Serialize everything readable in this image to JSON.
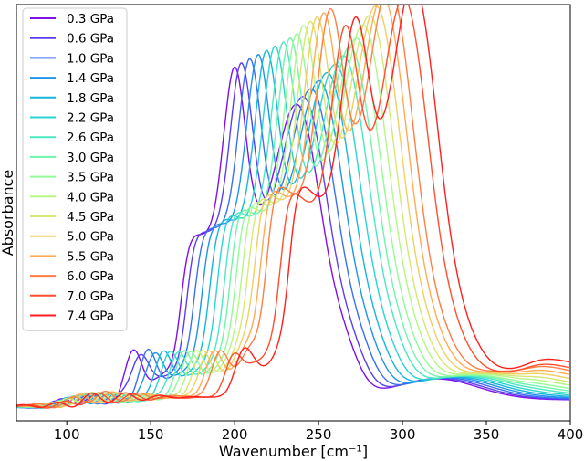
{
  "chart_data": {
    "type": "line",
    "title": "",
    "xlabel": "Wavenumber [cm⁻¹]",
    "ylabel": "Absorbance",
    "xlim": [
      70,
      400
    ],
    "ylim": [
      0,
      1
    ],
    "x_ticks": [
      "100",
      "150",
      "200",
      "250",
      "300",
      "350",
      "400"
    ],
    "x_tick_values": [
      100,
      150,
      200,
      250,
      300,
      350,
      400
    ],
    "y_ticks_shown": false,
    "grid": false,
    "legend_position": "top-left",
    "note": "",
    "series": [
      {
        "name": "0.3 GPa",
        "color": "#7f10e6",
        "peak_x": 200,
        "peak_y": 0.85
      },
      {
        "name": "0.6 GPa",
        "color": "#5a3ff0",
        "peak_x": 204,
        "peak_y": 0.86
      },
      {
        "name": "1.0 GPa",
        "color": "#3a6ff5",
        "peak_x": 209,
        "peak_y": 0.87
      },
      {
        "name": "1.4 GPa",
        "color": "#1f94e8",
        "peak_x": 214,
        "peak_y": 0.88
      },
      {
        "name": "1.8 GPa",
        "color": "#16b5dc",
        "peak_x": 219,
        "peak_y": 0.89
      },
      {
        "name": "2.2 GPa",
        "color": "#2ad4d0",
        "peak_x": 224,
        "peak_y": 0.9
      },
      {
        "name": "2.6 GPa",
        "color": "#4ae8c0",
        "peak_x": 229,
        "peak_y": 0.91
      },
      {
        "name": "3.0 GPa",
        "color": "#6ef5ac",
        "peak_x": 233,
        "peak_y": 0.92
      },
      {
        "name": "3.5 GPa",
        "color": "#93fb98",
        "peak_x": 237,
        "peak_y": 0.93
      },
      {
        "name": "4.0 GPa",
        "color": "#b5f785",
        "peak_x": 241,
        "peak_y": 0.95
      },
      {
        "name": "4.5 GPa",
        "color": "#d4e873",
        "peak_x": 245,
        "peak_y": 0.96
      },
      {
        "name": "5.0 GPa",
        "color": "#f0cf63",
        "peak_x": 249,
        "peak_y": 0.97
      },
      {
        "name": "5.5 GPa",
        "color": "#ffab54",
        "peak_x": 253,
        "peak_y": 0.98
      },
      {
        "name": "6.0 GPa",
        "color": "#ff7e43",
        "peak_x": 257,
        "peak_y": 0.99
      },
      {
        "name": "7.0 GPa",
        "color": "#ff4f2f",
        "peak_x": 266,
        "peak_y": 0.95
      },
      {
        "name": "7.4 GPa",
        "color": "#ff1f1f",
        "peak_x": 272,
        "peak_y": 0.97
      }
    ]
  }
}
